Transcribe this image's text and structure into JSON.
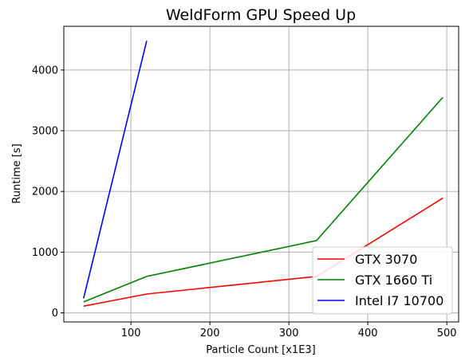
{
  "chart_data": {
    "type": "line",
    "title": "WeldForm GPU Speed Up",
    "xlabel": "Particle Count [x1E3]",
    "ylabel": "Runtime [s]",
    "xlim": [
      15,
      515
    ],
    "ylim": [
      -150,
      4720
    ],
    "xticks": [
      100,
      200,
      300,
      400,
      500
    ],
    "yticks": [
      0,
      1000,
      2000,
      3000,
      4000
    ],
    "grid": true,
    "legend_position": "bottom-right",
    "series": [
      {
        "name": "GTX 3070",
        "color": "#ff0000",
        "x": [
          40,
          120,
          335,
          495
        ],
        "y": [
          110,
          310,
          600,
          1890
        ]
      },
      {
        "name": "GTX 1660 Ti",
        "color": "#008000",
        "x": [
          40,
          120,
          335,
          495
        ],
        "y": [
          180,
          600,
          1190,
          3550
        ]
      },
      {
        "name": "Intel I7 10700",
        "color": "#0000ff",
        "x": [
          40,
          120
        ],
        "y": [
          240,
          4480
        ]
      }
    ]
  }
}
